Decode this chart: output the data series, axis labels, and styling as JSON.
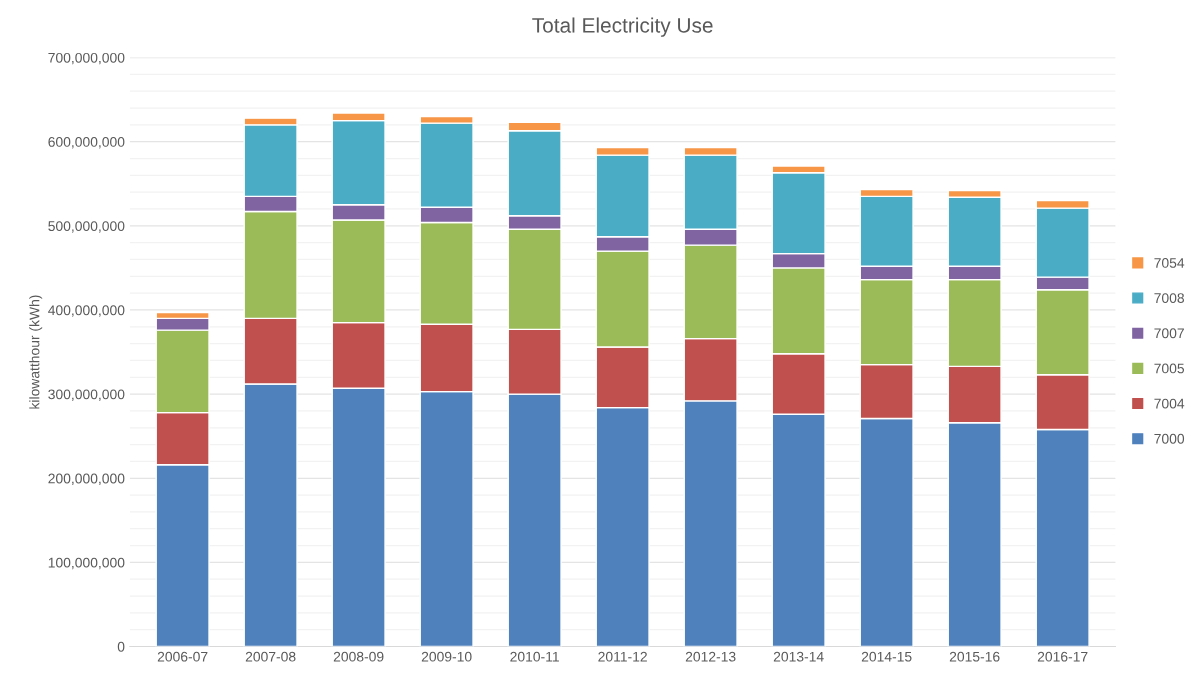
{
  "chart_data": {
    "type": "bar",
    "stacked": true,
    "title": "Total Electricity Use",
    "ylabel": "kilowatthour (kWh)",
    "categories": [
      "2006-07",
      "2007-08",
      "2008-09",
      "2009-10",
      "2010-11",
      "2011-12",
      "2012-13",
      "2013-14",
      "2014-15",
      "2015-16",
      "2016-17"
    ],
    "series": [
      {
        "name": "7000",
        "color": "#4f81bd",
        "values": [
          216000000,
          312000000,
          307000000,
          303000000,
          300000000,
          284000000,
          292000000,
          276000000,
          271000000,
          266000000,
          258000000
        ]
      },
      {
        "name": "7004",
        "color": "#c0504d",
        "values": [
          62000000,
          78000000,
          78000000,
          80000000,
          77000000,
          72000000,
          74000000,
          72000000,
          64000000,
          67000000,
          65000000
        ]
      },
      {
        "name": "7005",
        "color": "#9bbb59",
        "values": [
          98000000,
          127000000,
          122000000,
          121000000,
          119000000,
          114000000,
          111000000,
          102000000,
          101000000,
          103000000,
          101000000
        ]
      },
      {
        "name": "7007",
        "color": "#8064a2",
        "values": [
          14000000,
          18000000,
          18000000,
          18000000,
          16000000,
          17000000,
          19000000,
          17000000,
          16000000,
          16000000,
          15000000
        ]
      },
      {
        "name": "7008",
        "color": "#4bacc6",
        "values": [
          0,
          85000000,
          100000000,
          100000000,
          101000000,
          97000000,
          88000000,
          96000000,
          83000000,
          82000000,
          82000000
        ]
      },
      {
        "name": "7054",
        "color": "#f79646",
        "values": [
          7000000,
          8000000,
          9000000,
          8000000,
          10000000,
          9000000,
          9000000,
          8000000,
          8000000,
          8000000,
          9000000
        ]
      }
    ],
    "ylim": [
      0,
      700000000
    ],
    "yticks": [
      {
        "value": 0,
        "label": "0"
      },
      {
        "value": 20000000,
        "label": null
      },
      {
        "value": 40000000,
        "label": null
      },
      {
        "value": 60000000,
        "label": null
      },
      {
        "value": 80000000,
        "label": null
      },
      {
        "value": 100000000,
        "label": "100,000,000"
      },
      {
        "value": 120000000,
        "label": null
      },
      {
        "value": 140000000,
        "label": null
      },
      {
        "value": 160000000,
        "label": null
      },
      {
        "value": 180000000,
        "label": null
      },
      {
        "value": 200000000,
        "label": "200,000,000"
      },
      {
        "value": 220000000,
        "label": null
      },
      {
        "value": 240000000,
        "label": null
      },
      {
        "value": 260000000,
        "label": null
      },
      {
        "value": 280000000,
        "label": null
      },
      {
        "value": 300000000,
        "label": "300,000,000"
      },
      {
        "value": 320000000,
        "label": null
      },
      {
        "value": 340000000,
        "label": null
      },
      {
        "value": 360000000,
        "label": null
      },
      {
        "value": 380000000,
        "label": null
      },
      {
        "value": 400000000,
        "label": "400,000,000"
      },
      {
        "value": 420000000,
        "label": null
      },
      {
        "value": 440000000,
        "label": null
      },
      {
        "value": 460000000,
        "label": null
      },
      {
        "value": 480000000,
        "label": null
      },
      {
        "value": 500000000,
        "label": "500,000,000"
      },
      {
        "value": 520000000,
        "label": null
      },
      {
        "value": 540000000,
        "label": null
      },
      {
        "value": 560000000,
        "label": null
      },
      {
        "value": 580000000,
        "label": null
      },
      {
        "value": 600000000,
        "label": "600,000,000"
      },
      {
        "value": 620000000,
        "label": null
      },
      {
        "value": 640000000,
        "label": null
      },
      {
        "value": 660000000,
        "label": null
      },
      {
        "value": 680000000,
        "label": null
      },
      {
        "value": 700000000,
        "label": "700,000,000"
      }
    ],
    "grid": "y",
    "legend": "right"
  }
}
